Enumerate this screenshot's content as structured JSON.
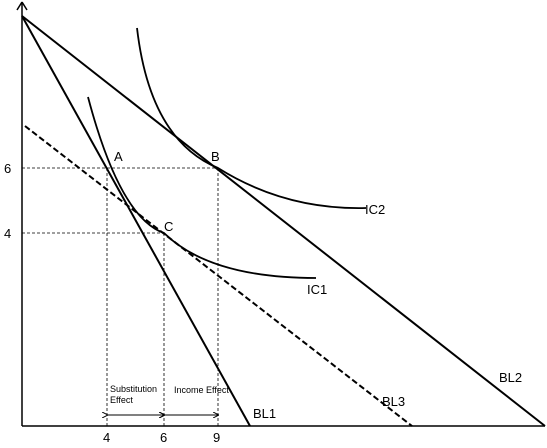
{
  "axes": {
    "y_ticks": [
      "6",
      "4"
    ],
    "x_ticks": [
      "4",
      "6",
      "9"
    ]
  },
  "points": {
    "a": "A",
    "b": "B",
    "c": "C"
  },
  "curves": {
    "ic1": "IC1",
    "ic2": "IC2"
  },
  "lines": {
    "bl1": "BL1",
    "bl2": "BL2",
    "bl3": "BL3"
  },
  "annotations": {
    "substitution_line1": "Substitution",
    "substitution_line2": "Effect",
    "income": "Income Effect"
  }
}
